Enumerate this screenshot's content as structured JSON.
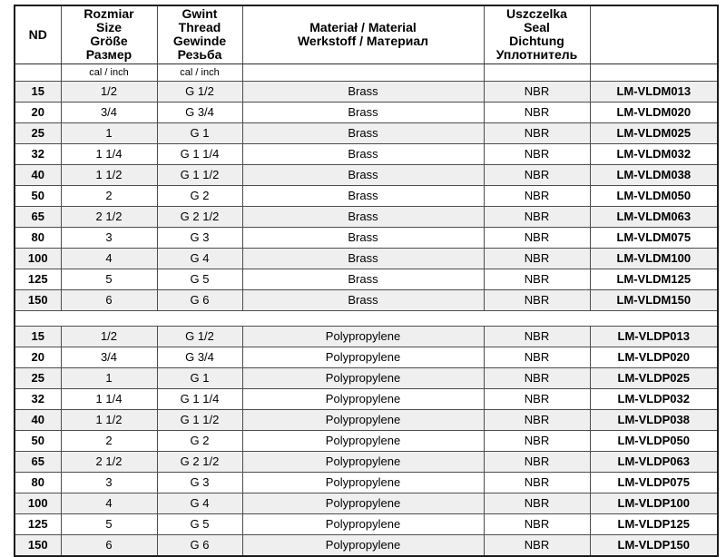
{
  "table": {
    "headers": [
      {
        "id": "nd",
        "lines": [
          "ND"
        ]
      },
      {
        "id": "size",
        "lines": [
          "Rozmiar",
          "Size",
          "Größe",
          "Размер"
        ]
      },
      {
        "id": "thread",
        "lines": [
          "Gwint",
          "Thread",
          "Gewinde",
          "Резьба"
        ]
      },
      {
        "id": "material",
        "lines": [
          "Materiał / Material",
          "Werkstoff / Материал"
        ]
      },
      {
        "id": "seal",
        "lines": [
          "Uszczelka",
          "Seal",
          "Dichtung",
          "Уплотнитель"
        ]
      },
      {
        "id": "code",
        "lines": []
      }
    ],
    "subheader": {
      "size_unit": "cal / inch",
      "thread_unit": "cal / inch"
    },
    "sections": [
      {
        "material": "Brass",
        "rows": [
          {
            "nd": "15",
            "size": "1/2",
            "thread": "G 1/2",
            "material": "Brass",
            "seal": "NBR",
            "code": "LM-VLDM013"
          },
          {
            "nd": "20",
            "size": "3/4",
            "thread": "G 3/4",
            "material": "Brass",
            "seal": "NBR",
            "code": "LM-VLDM020"
          },
          {
            "nd": "25",
            "size": "1",
            "thread": "G 1",
            "material": "Brass",
            "seal": "NBR",
            "code": "LM-VLDM025"
          },
          {
            "nd": "32",
            "size": "1 1/4",
            "thread": "G 1 1/4",
            "material": "Brass",
            "seal": "NBR",
            "code": "LM-VLDM032"
          },
          {
            "nd": "40",
            "size": "1 1/2",
            "thread": "G 1 1/2",
            "material": "Brass",
            "seal": "NBR",
            "code": "LM-VLDM038"
          },
          {
            "nd": "50",
            "size": "2",
            "thread": "G 2",
            "material": "Brass",
            "seal": "NBR",
            "code": "LM-VLDM050"
          },
          {
            "nd": "65",
            "size": "2 1/2",
            "thread": "G 2 1/2",
            "material": "Brass",
            "seal": "NBR",
            "code": "LM-VLDM063"
          },
          {
            "nd": "80",
            "size": "3",
            "thread": "G 3",
            "material": "Brass",
            "seal": "NBR",
            "code": "LM-VLDM075"
          },
          {
            "nd": "100",
            "size": "4",
            "thread": "G 4",
            "material": "Brass",
            "seal": "NBR",
            "code": "LM-VLDM100"
          },
          {
            "nd": "125",
            "size": "5",
            "thread": "G 5",
            "material": "Brass",
            "seal": "NBR",
            "code": "LM-VLDM125"
          },
          {
            "nd": "150",
            "size": "6",
            "thread": "G 6",
            "material": "Brass",
            "seal": "NBR",
            "code": "LM-VLDM150"
          }
        ]
      },
      {
        "material": "Polypropylene",
        "rows": [
          {
            "nd": "15",
            "size": "1/2",
            "thread": "G 1/2",
            "material": "Polypropylene",
            "seal": "NBR",
            "code": "LM-VLDP013"
          },
          {
            "nd": "20",
            "size": "3/4",
            "thread": "G 3/4",
            "material": "Polypropylene",
            "seal": "NBR",
            "code": "LM-VLDP020"
          },
          {
            "nd": "25",
            "size": "1",
            "thread": "G 1",
            "material": "Polypropylene",
            "seal": "NBR",
            "code": "LM-VLDP025"
          },
          {
            "nd": "32",
            "size": "1 1/4",
            "thread": "G 1 1/4",
            "material": "Polypropylene",
            "seal": "NBR",
            "code": "LM-VLDP032"
          },
          {
            "nd": "40",
            "size": "1 1/2",
            "thread": "G 1 1/2",
            "material": "Polypropylene",
            "seal": "NBR",
            "code": "LM-VLDP038"
          },
          {
            "nd": "50",
            "size": "2",
            "thread": "G 2",
            "material": "Polypropylene",
            "seal": "NBR",
            "code": "LM-VLDP050"
          },
          {
            "nd": "65",
            "size": "2 1/2",
            "thread": "G 2 1/2",
            "material": "Polypropylene",
            "seal": "NBR",
            "code": "LM-VLDP063"
          },
          {
            "nd": "80",
            "size": "3",
            "thread": "G 3",
            "material": "Polypropylene",
            "seal": "NBR",
            "code": "LM-VLDP075"
          },
          {
            "nd": "100",
            "size": "4",
            "thread": "G 4",
            "material": "Polypropylene",
            "seal": "NBR",
            "code": "LM-VLDP100"
          },
          {
            "nd": "125",
            "size": "5",
            "thread": "G 5",
            "material": "Polypropylene",
            "seal": "NBR",
            "code": "LM-VLDP125"
          },
          {
            "nd": "150",
            "size": "6",
            "thread": "G 6",
            "material": "Polypropylene",
            "seal": "NBR",
            "code": "LM-VLDP150"
          }
        ]
      }
    ],
    "colors": {
      "stripe": "#efefef",
      "border": "#4d4d4d",
      "outer_border": "#1c1c1c",
      "text": "#000000",
      "background": "#ffffff"
    }
  }
}
